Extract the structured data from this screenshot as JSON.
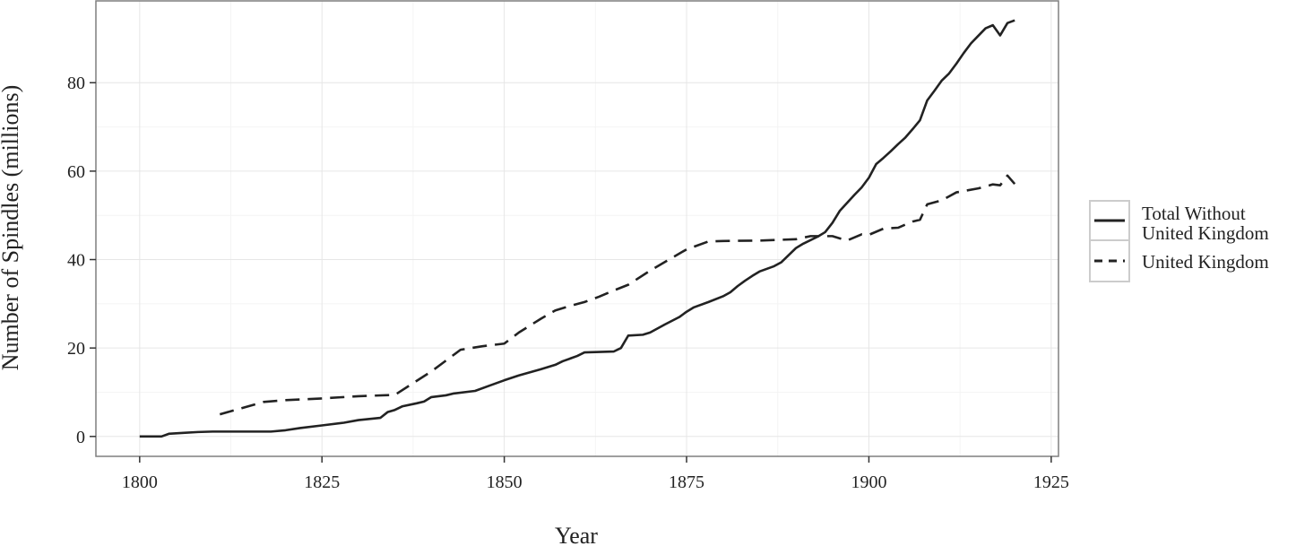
{
  "chart_data": {
    "type": "line",
    "title": "",
    "xlabel": "Year",
    "ylabel": "Number of Spindles (millions)",
    "xlim": [
      1794,
      1926
    ],
    "ylim": [
      -4.5,
      98.5
    ],
    "x_ticks": [
      1800,
      1825,
      1850,
      1875,
      1900,
      1925
    ],
    "y_ticks": [
      0,
      20,
      40,
      60,
      80
    ],
    "x_tick_labels": [
      "1800",
      "1825",
      "1850",
      "1875",
      "1900",
      "1925"
    ],
    "y_tick_labels": [
      "0",
      "20",
      "40",
      "60",
      "80"
    ],
    "grid": true,
    "legend_position": "right",
    "series": [
      {
        "name": "Total Without United Kingdom",
        "style": "solid",
        "color": "#222222",
        "points": [
          [
            1800,
            0.0
          ],
          [
            1803,
            0.0
          ],
          [
            1804,
            0.6
          ],
          [
            1806,
            0.8
          ],
          [
            1808,
            1.0
          ],
          [
            1810,
            1.1
          ],
          [
            1812,
            1.1
          ],
          [
            1815,
            1.1
          ],
          [
            1818,
            1.1
          ],
          [
            1820,
            1.4
          ],
          [
            1822,
            1.9
          ],
          [
            1825,
            2.5
          ],
          [
            1828,
            3.1
          ],
          [
            1830,
            3.7
          ],
          [
            1833,
            4.2
          ],
          [
            1834,
            5.5
          ],
          [
            1835,
            6.0
          ],
          [
            1836,
            6.8
          ],
          [
            1838,
            7.5
          ],
          [
            1839,
            7.9
          ],
          [
            1840,
            8.9
          ],
          [
            1842,
            9.3
          ],
          [
            1843,
            9.7
          ],
          [
            1846,
            10.3
          ],
          [
            1848,
            11.5
          ],
          [
            1850,
            12.7
          ],
          [
            1852,
            13.8
          ],
          [
            1855,
            15.2
          ],
          [
            1857,
            16.2
          ],
          [
            1858,
            17.0
          ],
          [
            1860,
            18.2
          ],
          [
            1861,
            19.0
          ],
          [
            1865,
            19.2
          ],
          [
            1866,
            20.0
          ],
          [
            1867,
            22.8
          ],
          [
            1869,
            23.0
          ],
          [
            1870,
            23.5
          ],
          [
            1872,
            25.3
          ],
          [
            1874,
            27.0
          ],
          [
            1875,
            28.2
          ],
          [
            1876,
            29.2
          ],
          [
            1878,
            30.4
          ],
          [
            1880,
            31.7
          ],
          [
            1881,
            32.6
          ],
          [
            1882,
            34.0
          ],
          [
            1883,
            35.2
          ],
          [
            1884,
            36.3
          ],
          [
            1885,
            37.3
          ],
          [
            1887,
            38.5
          ],
          [
            1888,
            39.4
          ],
          [
            1889,
            41.0
          ],
          [
            1890,
            42.6
          ],
          [
            1891,
            43.6
          ],
          [
            1893,
            45.2
          ],
          [
            1894,
            46.2
          ],
          [
            1895,
            48.3
          ],
          [
            1896,
            51.0
          ],
          [
            1898,
            54.6
          ],
          [
            1899,
            56.3
          ],
          [
            1900,
            58.5
          ],
          [
            1901,
            61.6
          ],
          [
            1902,
            63.0
          ],
          [
            1903,
            64.5
          ],
          [
            1904,
            66.1
          ],
          [
            1905,
            67.6
          ],
          [
            1906,
            69.5
          ],
          [
            1907,
            71.5
          ],
          [
            1908,
            76.0
          ],
          [
            1909,
            78.2
          ],
          [
            1910,
            80.5
          ],
          [
            1911,
            82.1
          ],
          [
            1912,
            84.3
          ],
          [
            1913,
            86.7
          ],
          [
            1914,
            88.9
          ],
          [
            1915,
            90.6
          ],
          [
            1916,
            92.3
          ],
          [
            1917,
            93.0
          ],
          [
            1918,
            90.7
          ],
          [
            1919,
            93.5
          ],
          [
            1920,
            94.1
          ]
        ]
      },
      {
        "name": "United Kingdom",
        "style": "dashed",
        "color": "#222222",
        "points": [
          [
            1811,
            5.0
          ],
          [
            1814,
            6.4
          ],
          [
            1817,
            7.8
          ],
          [
            1820,
            8.2
          ],
          [
            1825,
            8.6
          ],
          [
            1830,
            9.1
          ],
          [
            1835,
            9.4
          ],
          [
            1840,
            14.7
          ],
          [
            1844,
            19.6
          ],
          [
            1847,
            20.4
          ],
          [
            1850,
            21.0
          ],
          [
            1852,
            23.5
          ],
          [
            1855,
            26.6
          ],
          [
            1857,
            28.5
          ],
          [
            1859,
            29.5
          ],
          [
            1861,
            30.4
          ],
          [
            1863,
            31.6
          ],
          [
            1865,
            33.0
          ],
          [
            1867,
            34.3
          ],
          [
            1870,
            37.5
          ],
          [
            1873,
            40.4
          ],
          [
            1875,
            42.3
          ],
          [
            1878,
            44.1
          ],
          [
            1880,
            44.2
          ],
          [
            1885,
            44.3
          ],
          [
            1890,
            44.6
          ],
          [
            1892,
            45.3
          ],
          [
            1895,
            45.3
          ],
          [
            1897,
            44.3
          ],
          [
            1899,
            45.7
          ],
          [
            1900,
            45.6
          ],
          [
            1902,
            47.0
          ],
          [
            1904,
            47.2
          ],
          [
            1906,
            48.6
          ],
          [
            1907,
            49.0
          ],
          [
            1908,
            52.5
          ],
          [
            1910,
            53.4
          ],
          [
            1912,
            55.2
          ],
          [
            1915,
            56.1
          ],
          [
            1917,
            57.0
          ],
          [
            1918,
            56.8
          ],
          [
            1919,
            59.0
          ],
          [
            1920,
            57.1
          ]
        ]
      }
    ]
  }
}
